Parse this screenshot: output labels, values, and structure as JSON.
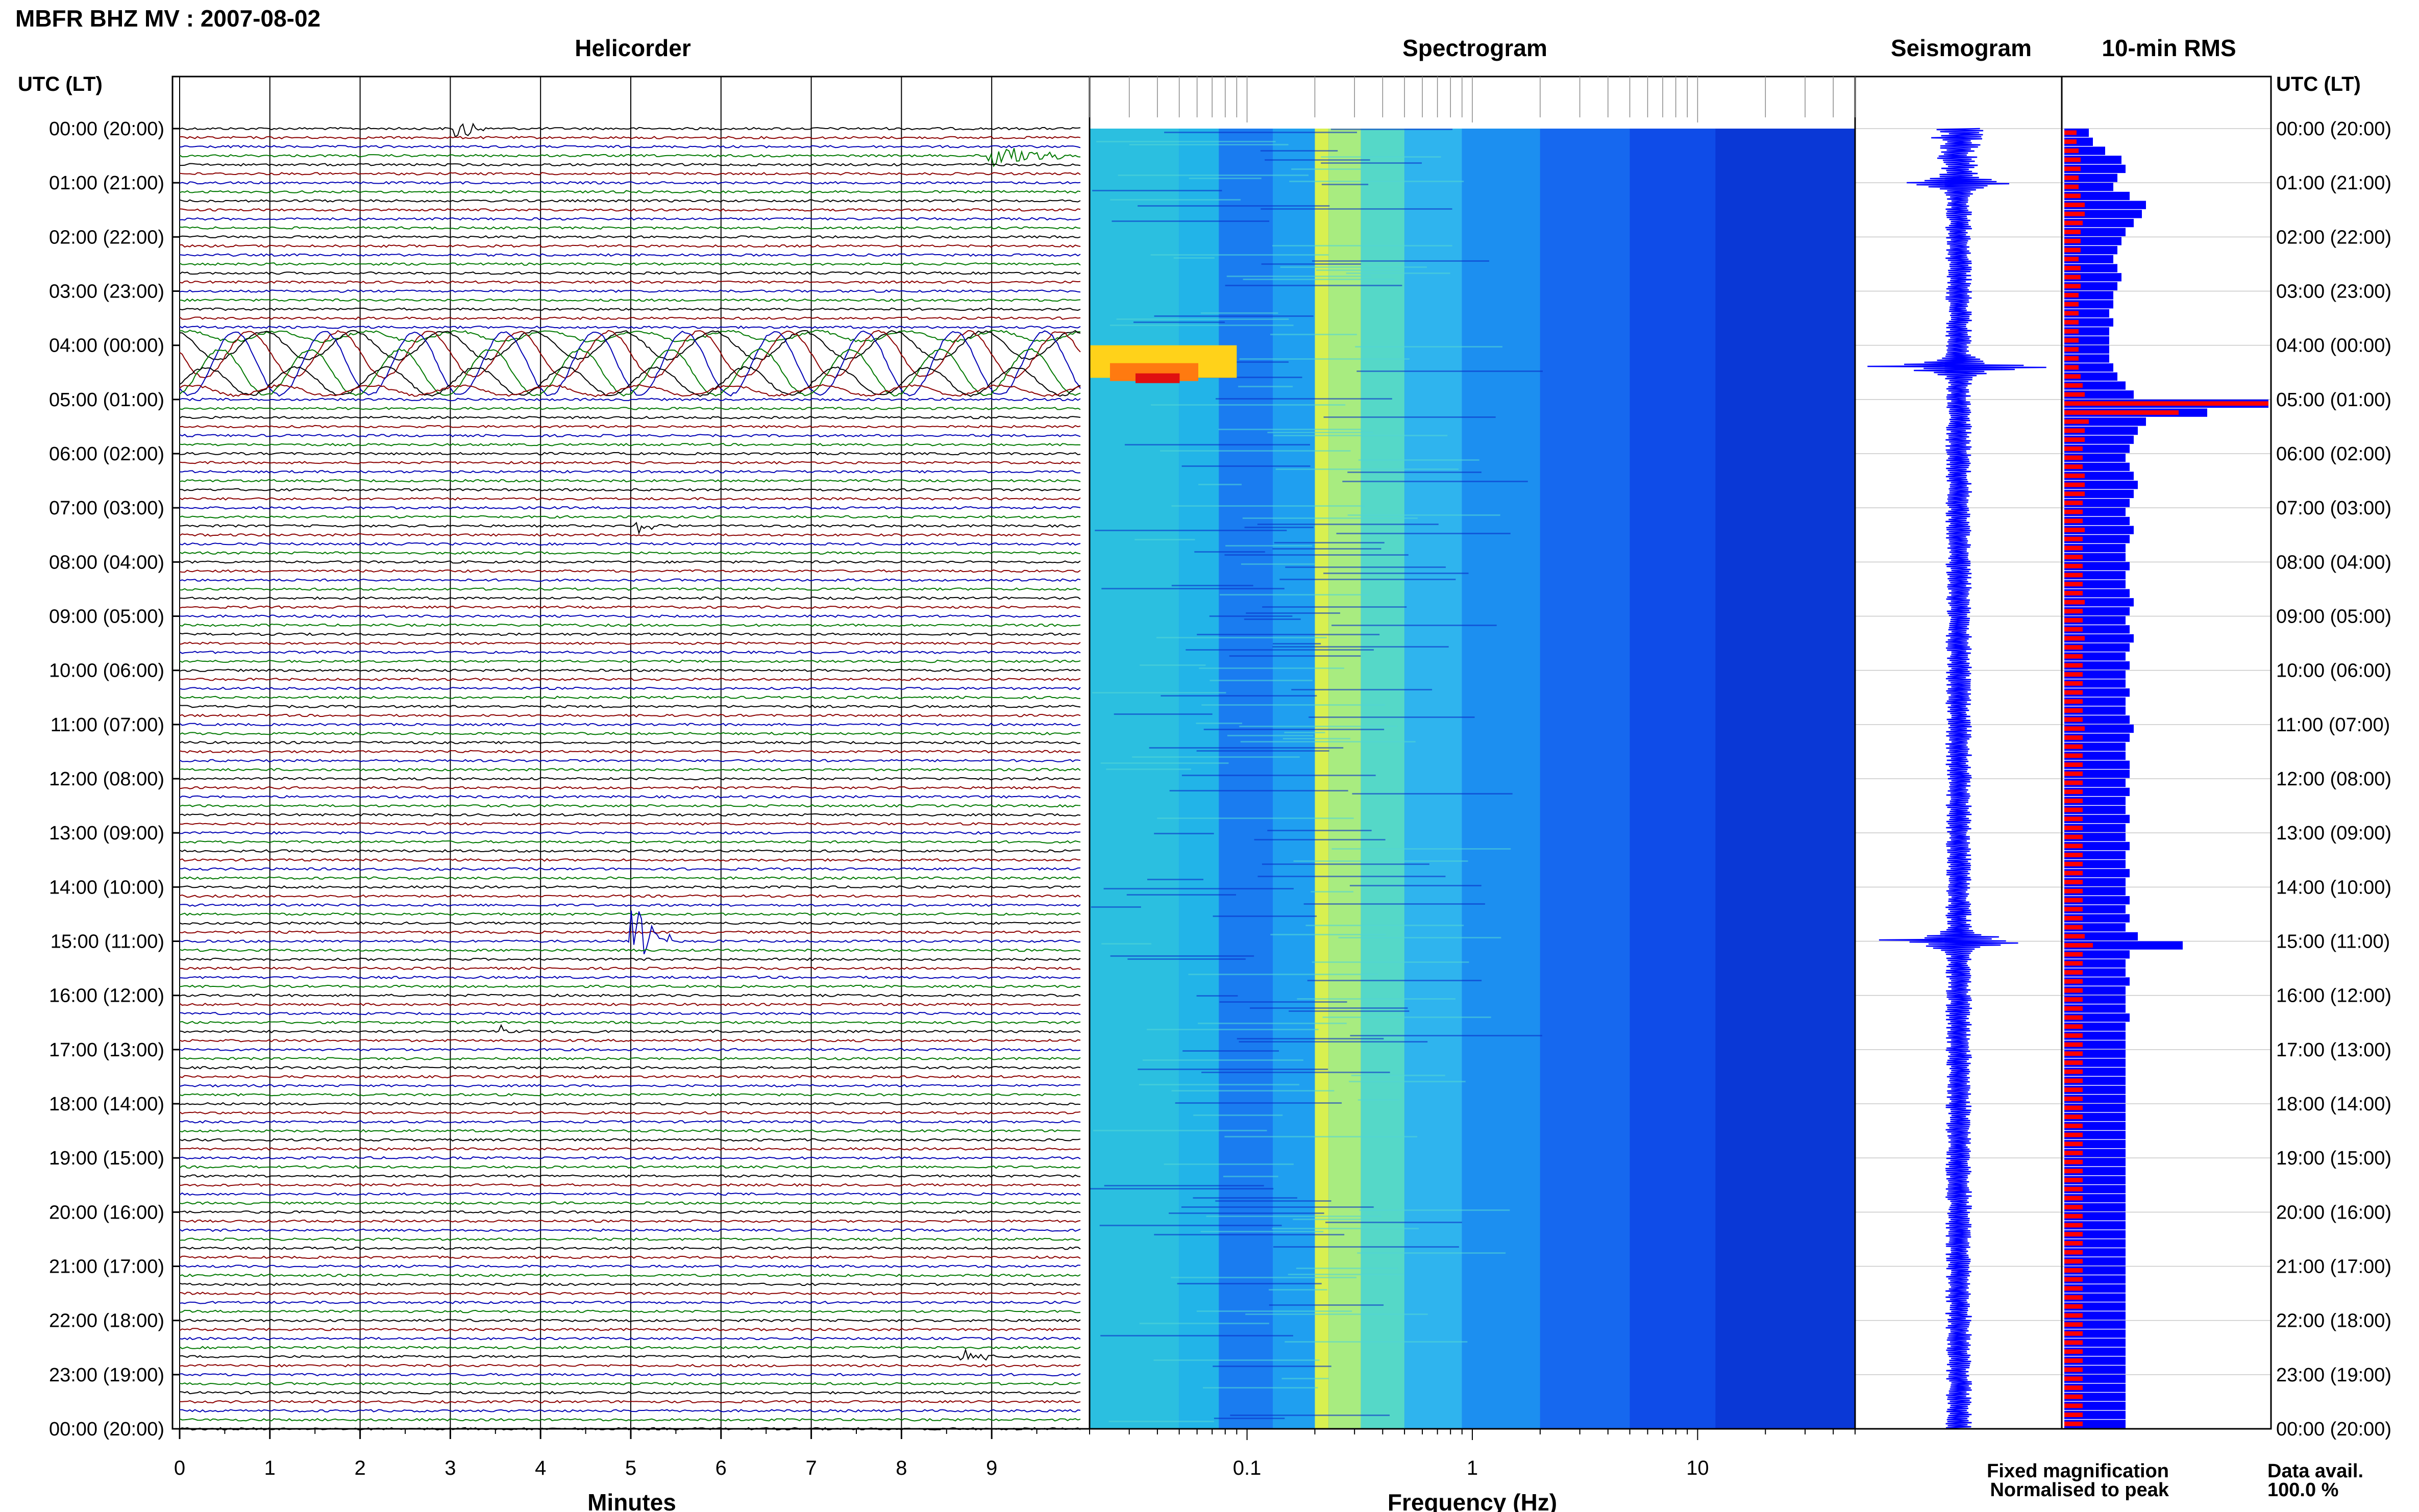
{
  "header": {
    "title": "MBFR BHZ MV : 2007-08-02"
  },
  "panels": {
    "helicorder": "Helicorder",
    "spectrogram": "Spectrogram",
    "seismogram": "Seismogram",
    "rms": "10-min RMS"
  },
  "axis_heading": {
    "left": "UTC (LT)",
    "right": "UTC (LT)"
  },
  "legend": {
    "fixed": "Fixed magnification",
    "normalised": "Normalised to peak",
    "fixed_color": "#0000ff",
    "normalised_color": "#ff0000"
  },
  "data_avail": {
    "label": "Data avail.",
    "value": "100.0 %"
  },
  "chart_data": {
    "type": "heatmap",
    "title": "MBFR BHZ MV : 2007-08-02",
    "time_labels": [
      "00:00 (20:00)",
      "01:00 (21:00)",
      "02:00 (22:00)",
      "03:00 (23:00)",
      "04:00 (00:00)",
      "05:00 (01:00)",
      "06:00 (02:00)",
      "07:00 (03:00)",
      "08:00 (04:00)",
      "09:00 (05:00)",
      "10:00 (06:00)",
      "11:00 (07:00)",
      "12:00 (08:00)",
      "13:00 (09:00)",
      "14:00 (10:00)",
      "15:00 (11:00)",
      "16:00 (12:00)",
      "17:00 (13:00)",
      "18:00 (14:00)",
      "19:00 (15:00)",
      "20:00 (16:00)",
      "21:00 (17:00)",
      "22:00 (18:00)",
      "23:00 (19:00)",
      "00:00 (20:00)"
    ],
    "helicorder": {
      "xlabel": "Minutes",
      "xticks": [
        "0",
        "1",
        "2",
        "3",
        "4",
        "5",
        "6",
        "7",
        "8",
        "9"
      ],
      "xlim": [
        0,
        10
      ],
      "lines_per_hour": 6,
      "trace_colors": [
        "#000000",
        "#8b0000",
        "#0000b4",
        "#007800"
      ],
      "events": [
        {
          "hour": 4.33,
          "minute": 1.0,
          "amp": 3.5,
          "dur": 10.0,
          "type": "teleseism"
        },
        {
          "hour": 15.0,
          "minute": 5.05,
          "amp": 4.0,
          "dur": 0.4,
          "type": "local"
        },
        {
          "hour": 0.0,
          "minute": 3.1,
          "amp": 1.2,
          "dur": 0.3,
          "type": "local"
        },
        {
          "hour": 0.5,
          "minute": 9.0,
          "amp": 1.4,
          "dur": 1.0,
          "type": "local"
        },
        {
          "hour": 7.33,
          "minute": 5.1,
          "amp": 1.0,
          "dur": 0.3,
          "type": "local"
        },
        {
          "hour": 16.66,
          "minute": 3.6,
          "amp": 0.8,
          "dur": 0.3,
          "type": "local"
        },
        {
          "hour": 22.66,
          "minute": 8.7,
          "amp": 0.8,
          "dur": 0.4,
          "type": "local"
        }
      ]
    },
    "spectrogram": {
      "xlabel": "Frequency (Hz)",
      "xscale": "log",
      "xlim": [
        0.02,
        50
      ],
      "xticks": [
        "0.1",
        "1",
        "10"
      ],
      "xtick_values": [
        0.1,
        1,
        10
      ],
      "hot_spot": {
        "hour_start": 4.0,
        "hour_end": 4.6,
        "freq_start": 0.02,
        "freq_end": 0.09
      }
    },
    "seismogram": {
      "spikes": [
        {
          "hour": 4.4,
          "amp": 0.9
        },
        {
          "hour": 1.0,
          "amp": 0.5
        },
        {
          "hour": 15.0,
          "amp": 1.0
        }
      ]
    },
    "rms": {
      "interval_minutes": 10,
      "fixed_relative": [
        0.12,
        0.14,
        0.2,
        0.28,
        0.3,
        0.26,
        0.24,
        0.32,
        0.4,
        0.38,
        0.34,
        0.3,
        0.28,
        0.26,
        0.24,
        0.26,
        0.28,
        0.26,
        0.24,
        0.24,
        0.22,
        0.24,
        0.22,
        0.22,
        0.22,
        0.22,
        0.24,
        0.26,
        0.3,
        0.34,
        1.0,
        0.7,
        0.4,
        0.36,
        0.34,
        0.32,
        0.3,
        0.32,
        0.34,
        0.36,
        0.34,
        0.32,
        0.3,
        0.32,
        0.34,
        0.32,
        0.3,
        0.3,
        0.32,
        0.3,
        0.3,
        0.32,
        0.34,
        0.32,
        0.3,
        0.32,
        0.34,
        0.32,
        0.3,
        0.32,
        0.3,
        0.3,
        0.32,
        0.3,
        0.3,
        0.32,
        0.34,
        0.32,
        0.3,
        0.3,
        0.32,
        0.32,
        0.3,
        0.32,
        0.3,
        0.3,
        0.32,
        0.3,
        0.3,
        0.32,
        0.3,
        0.3,
        0.32,
        0.3,
        0.3,
        0.32,
        0.3,
        0.32,
        0.3,
        0.36,
        0.58,
        0.32,
        0.3,
        0.3,
        0.32,
        0.3,
        0.3,
        0.3,
        0.32,
        0.3,
        0.3,
        0.3,
        0.3,
        0.3,
        0.3,
        0.3,
        0.3,
        0.3,
        0.3,
        0.3,
        0.3,
        0.3,
        0.3,
        0.3,
        0.3,
        0.3,
        0.3,
        0.3,
        0.3,
        0.3,
        0.3,
        0.3,
        0.3,
        0.3,
        0.3,
        0.3,
        0.3,
        0.3,
        0.3,
        0.3,
        0.3,
        0.3,
        0.3,
        0.3,
        0.3,
        0.3,
        0.3,
        0.3,
        0.3,
        0.3,
        0.3,
        0.3,
        0.3,
        0.3
      ],
      "normalised_relative": [
        0.06,
        0.06,
        0.07,
        0.08,
        0.08,
        0.07,
        0.07,
        0.08,
        0.1,
        0.1,
        0.09,
        0.08,
        0.08,
        0.08,
        0.07,
        0.08,
        0.08,
        0.08,
        0.07,
        0.07,
        0.07,
        0.07,
        0.07,
        0.07,
        0.07,
        0.07,
        0.07,
        0.08,
        0.09,
        0.1,
        1.0,
        0.56,
        0.12,
        0.1,
        0.1,
        0.09,
        0.09,
        0.09,
        0.1,
        0.1,
        0.1,
        0.09,
        0.09,
        0.09,
        0.1,
        0.09,
        0.09,
        0.09,
        0.09,
        0.09,
        0.09,
        0.09,
        0.1,
        0.09,
        0.09,
        0.09,
        0.1,
        0.09,
        0.09,
        0.09,
        0.09,
        0.09,
        0.09,
        0.09,
        0.09,
        0.09,
        0.1,
        0.09,
        0.09,
        0.09,
        0.09,
        0.09,
        0.09,
        0.09,
        0.09,
        0.09,
        0.09,
        0.09,
        0.09,
        0.09,
        0.09,
        0.09,
        0.09,
        0.09,
        0.09,
        0.09,
        0.09,
        0.09,
        0.09,
        0.1,
        0.14,
        0.09,
        0.09,
        0.09,
        0.09,
        0.09,
        0.09,
        0.09,
        0.09,
        0.09,
        0.09,
        0.09,
        0.09,
        0.09,
        0.09,
        0.09,
        0.09,
        0.09,
        0.09,
        0.09,
        0.09,
        0.09,
        0.09,
        0.09,
        0.09,
        0.09,
        0.09,
        0.09,
        0.09,
        0.09,
        0.09,
        0.09,
        0.09,
        0.09,
        0.09,
        0.09,
        0.09,
        0.09,
        0.09,
        0.09,
        0.09,
        0.09,
        0.09,
        0.09,
        0.09,
        0.09,
        0.09,
        0.09,
        0.09,
        0.09,
        0.09,
        0.09,
        0.09,
        0.09
      ]
    }
  }
}
